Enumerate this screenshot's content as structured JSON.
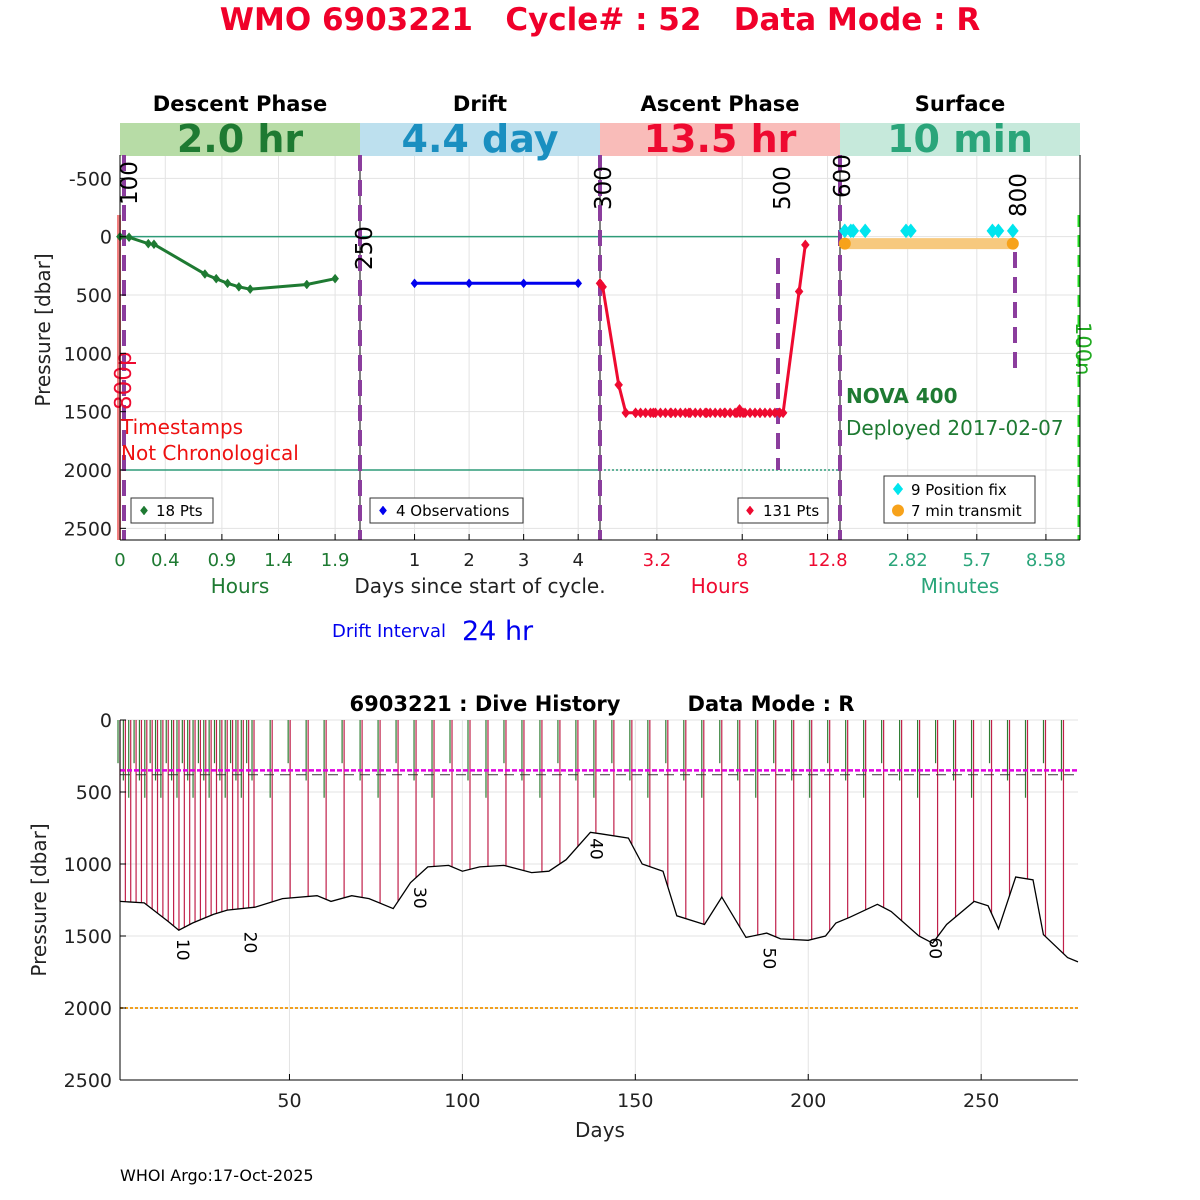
{
  "title": "WMO 6903221   Cycle# : 52   Data Mode : R",
  "footer": "WHOI Argo:17-Oct-2025",
  "colors": {
    "title": "#f0002a",
    "descent": "#1e7a32",
    "drift": "#0000ee",
    "ascent": "#ee0a30",
    "surface": "#2aa57a",
    "position_fix": "#00e5ee",
    "transmit": "#f7a21a",
    "vline": "#8b3d9d",
    "park_line": "#e000e0",
    "profile_line": "#f0a020"
  },
  "cycle_chart": {
    "ylabel": "Pressure [dbar]",
    "y_ticks": [
      "-500",
      "0",
      "500",
      "1000",
      "1500",
      "2000",
      "2500"
    ],
    "y_tick_values": [
      -500,
      0,
      500,
      1000,
      1500,
      2000,
      2500
    ],
    "ylim": [
      -700,
      2600
    ],
    "center_xlabel": "Days since start of cycle.",
    "drift_interval_label": "Drift Interval",
    "drift_interval_value": "24 hr",
    "warning_line1": "Timestamps",
    "warning_line2": "Not Chronological",
    "float_type": "NOVA 400",
    "deployed": "Deployed 2017-02-07",
    "press_labels": [
      "100",
      "250",
      "300",
      "500",
      "600",
      "800"
    ],
    "side_labels": [
      "800p",
      "100n"
    ],
    "phases": [
      {
        "name": "Descent Phase",
        "duration": "2.0 hr",
        "header_color": "#b7dca6",
        "text_color": "#1e7a32",
        "ticks": [
          "0",
          "0.4",
          "0.9",
          "1.4",
          "1.9"
        ],
        "tick_values": [
          0,
          0.4,
          0.9,
          1.4,
          1.9
        ],
        "xlim": [
          0,
          2.12
        ],
        "xlabel": "Hours",
        "legend": "18 Pts"
      },
      {
        "name": "Drift",
        "duration": "4.4 day",
        "header_color": "#bde0ee",
        "text_color": "#1a8fc0",
        "ticks": [
          "1",
          "2",
          "3",
          "4"
        ],
        "tick_values": [
          1,
          2,
          3,
          4
        ],
        "xlim": [
          0,
          4.4
        ],
        "xlabel": "",
        "legend": "4 Observations"
      },
      {
        "name": "Ascent Phase",
        "duration": "13.5 hr",
        "header_color": "#f9bcb9",
        "text_color": "#ee0a30",
        "ticks": [
          "3.2",
          "8",
          "12.8"
        ],
        "tick_values": [
          3.2,
          8,
          12.8
        ],
        "xlim": [
          0,
          13.5
        ],
        "xlabel": "Hours",
        "legend": "131 Pts"
      },
      {
        "name": "Surface",
        "duration": "10 min",
        "header_color": "#c6e9db",
        "text_color": "#2aa57a",
        "ticks": [
          "2.82",
          "5.7",
          "8.58"
        ],
        "tick_values": [
          2.82,
          5.7,
          8.58
        ],
        "xlim": [
          0,
          10
        ],
        "xlabel": "Minutes",
        "legend": [
          "9 Position fix",
          "7 min transmit"
        ]
      }
    ]
  },
  "chart_data": [
    {
      "type": "line",
      "title": "WMO 6903221   Cycle# : 52   Data Mode : R",
      "ylabel": "Pressure [dbar]",
      "ylim": [
        -700,
        2600
      ],
      "y_reversed": true,
      "series": [
        {
          "name": "18 Pts",
          "x_unit": "Hours",
          "x": [
            0,
            0.08,
            0.25,
            0.3,
            0.75,
            0.85,
            0.95,
            1.05,
            1.15,
            1.65,
            1.9
          ],
          "y": [
            0,
            5,
            60,
            65,
            320,
            360,
            400,
            430,
            450,
            410,
            360
          ]
        },
        {
          "name": "4 Observations",
          "x_unit": "Days",
          "x": [
            1,
            2,
            3,
            4
          ],
          "y": [
            400,
            400,
            400,
            400
          ]
        },
        {
          "name": "131 Pts",
          "x_unit": "Hours",
          "x": [
            0,
            0.15,
            1.05,
            1.45,
            2,
            3,
            4,
            5,
            6,
            7,
            7.7,
            7.85,
            8.05,
            9,
            10.1,
            10.3,
            11.2,
            11.55
          ],
          "y": [
            400,
            430,
            1270,
            1510,
            1510,
            1510,
            1510,
            1510,
            1510,
            1510,
            1510,
            1480,
            1510,
            1510,
            1510,
            1510,
            470,
            70
          ]
        },
        {
          "name": "9 Position fix",
          "x_unit": "Minutes",
          "x": [
            0.2,
            0.45,
            0.55,
            1.05,
            2.75,
            2.95,
            6.35,
            6.6,
            7.2
          ],
          "y": [
            -50,
            -50,
            -50,
            -50,
            -50,
            -50,
            -50,
            -50,
            -50
          ]
        },
        {
          "name": "7 min transmit",
          "x_unit": "Minutes",
          "x": [
            0.2,
            7.2
          ],
          "y": [
            60,
            60
          ]
        }
      ]
    },
    {
      "type": "line",
      "title": "6903221 : Dive History",
      "subtitle": "Data Mode : R",
      "xlabel": "Days",
      "ylabel": "Pressure [dbar]",
      "xlim": [
        1,
        278
      ],
      "ylim": [
        0,
        2500
      ],
      "y_reversed": true,
      "x_ticks": [
        "50",
        "100",
        "150",
        "200",
        "250"
      ],
      "y_ticks": [
        "0",
        "500",
        "1000",
        "1500",
        "2000",
        "2500"
      ],
      "x_tick_values": [
        50,
        100,
        150,
        200,
        250
      ],
      "y_tick_values": [
        0,
        500,
        1000,
        1500,
        2000,
        2500
      ],
      "cycle_labels": [
        {
          "text": "10",
          "x": 17.5,
          "y": 1520
        },
        {
          "text": "20",
          "x": 37,
          "y": 1470
        },
        {
          "text": "30",
          "x": 86,
          "y": 1160
        },
        {
          "text": "40",
          "x": 137,
          "y": 820
        },
        {
          "text": "50",
          "x": 187,
          "y": 1580
        },
        {
          "text": "60",
          "x": 235,
          "y": 1510
        }
      ],
      "series": [
        {
          "name": "Profile depth",
          "x": [
            1,
            8,
            15,
            18,
            22,
            28,
            32,
            40,
            48,
            58,
            62,
            68,
            73,
            80,
            85,
            90,
            96,
            100,
            105,
            112,
            120,
            125,
            130,
            137,
            140,
            148,
            152,
            158,
            162,
            170,
            175,
            182,
            188,
            192,
            200,
            205,
            208,
            212,
            220,
            224,
            232,
            236,
            240,
            248,
            252,
            255,
            260,
            265,
            268,
            275,
            278
          ],
          "y": [
            1260,
            1270,
            1400,
            1460,
            1410,
            1350,
            1320,
            1300,
            1240,
            1220,
            1260,
            1220,
            1240,
            1310,
            1130,
            1020,
            1010,
            1050,
            1020,
            1010,
            1060,
            1050,
            970,
            780,
            790,
            820,
            1000,
            1050,
            1360,
            1420,
            1230,
            1510,
            1480,
            1520,
            1530,
            1500,
            1410,
            1370,
            1280,
            1330,
            1500,
            1550,
            1420,
            1260,
            1290,
            1450,
            1090,
            1110,
            1490,
            1650,
            1680
          ]
        },
        {
          "name": "Park depth",
          "x": [
            1,
            278
          ],
          "y": [
            350,
            350
          ]
        },
        {
          "name": "Drift pressure",
          "x": [
            1,
            278
          ],
          "y": [
            380,
            380
          ]
        },
        {
          "name": "Max profile 2000",
          "x": [
            1,
            278
          ],
          "y": [
            2000,
            2000
          ]
        }
      ]
    }
  ],
  "dive_history": {
    "title_left": "6903221 : Dive History",
    "title_right": "Data Mode : R",
    "xlabel": "Days",
    "ylabel": "Pressure [dbar]"
  }
}
